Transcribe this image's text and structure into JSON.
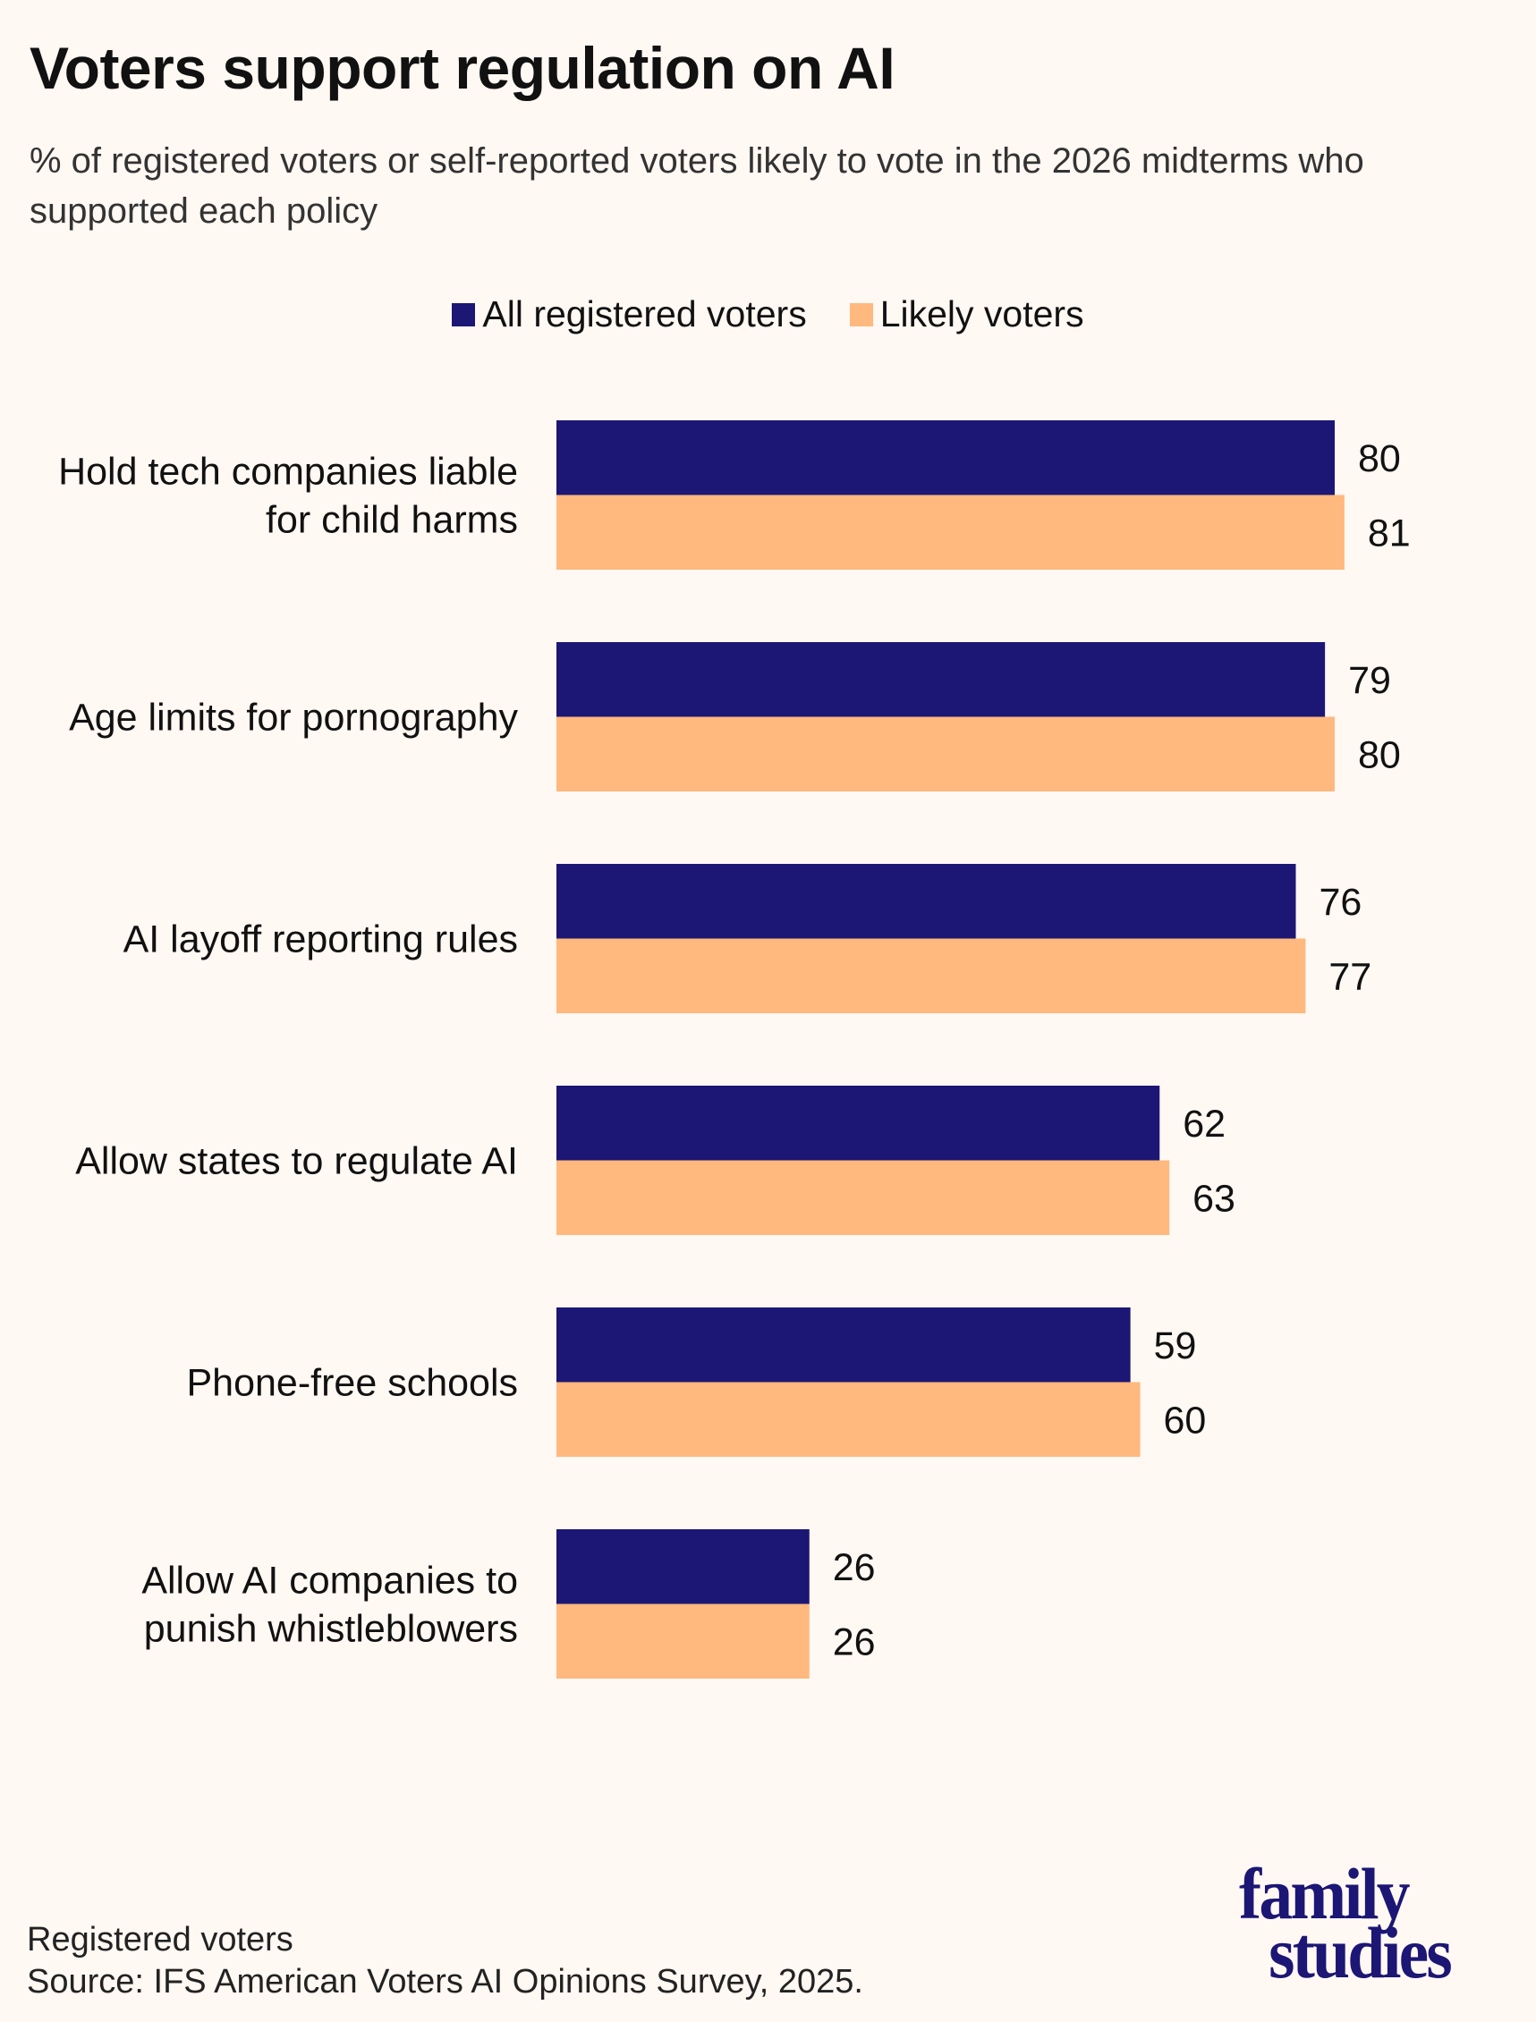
{
  "title": "Voters support regulation on AI",
  "subtitle": "% of registered voters or self-reported voters likely to vote in the 2026 midterms who supported each policy",
  "footer": {
    "note": "Registered voters",
    "source": "Source: IFS American Voters AI Opinions Survey, 2025."
  },
  "logo": {
    "line1": "family",
    "line2": "studies"
  },
  "chart_data": {
    "type": "bar",
    "orientation": "horizontal",
    "title": "Voters support regulation on AI",
    "subtitle": "% of registered voters or self-reported voters likely to vote in the 2026 midterms who supported each policy",
    "categories": [
      [
        "Hold tech companies liable",
        "for child harms"
      ],
      [
        "Age limits for pornography"
      ],
      [
        "AI layoff reporting rules"
      ],
      [
        "Allow states to regulate AI"
      ],
      [
        "Phone-free schools"
      ],
      [
        "Allow AI companies to",
        "punish whistleblowers"
      ]
    ],
    "series": [
      {
        "name": "All registered voters",
        "color": "#1c1675",
        "values": [
          80,
          79,
          76,
          62,
          59,
          26
        ]
      },
      {
        "name": "Likely voters",
        "color": "#ffb87d",
        "values": [
          81,
          80,
          77,
          63,
          60,
          26
        ]
      }
    ],
    "xlim": [
      0,
      100
    ],
    "grid": false,
    "axes_visible": false,
    "data_labels": true,
    "legend_placement": "top-center"
  }
}
